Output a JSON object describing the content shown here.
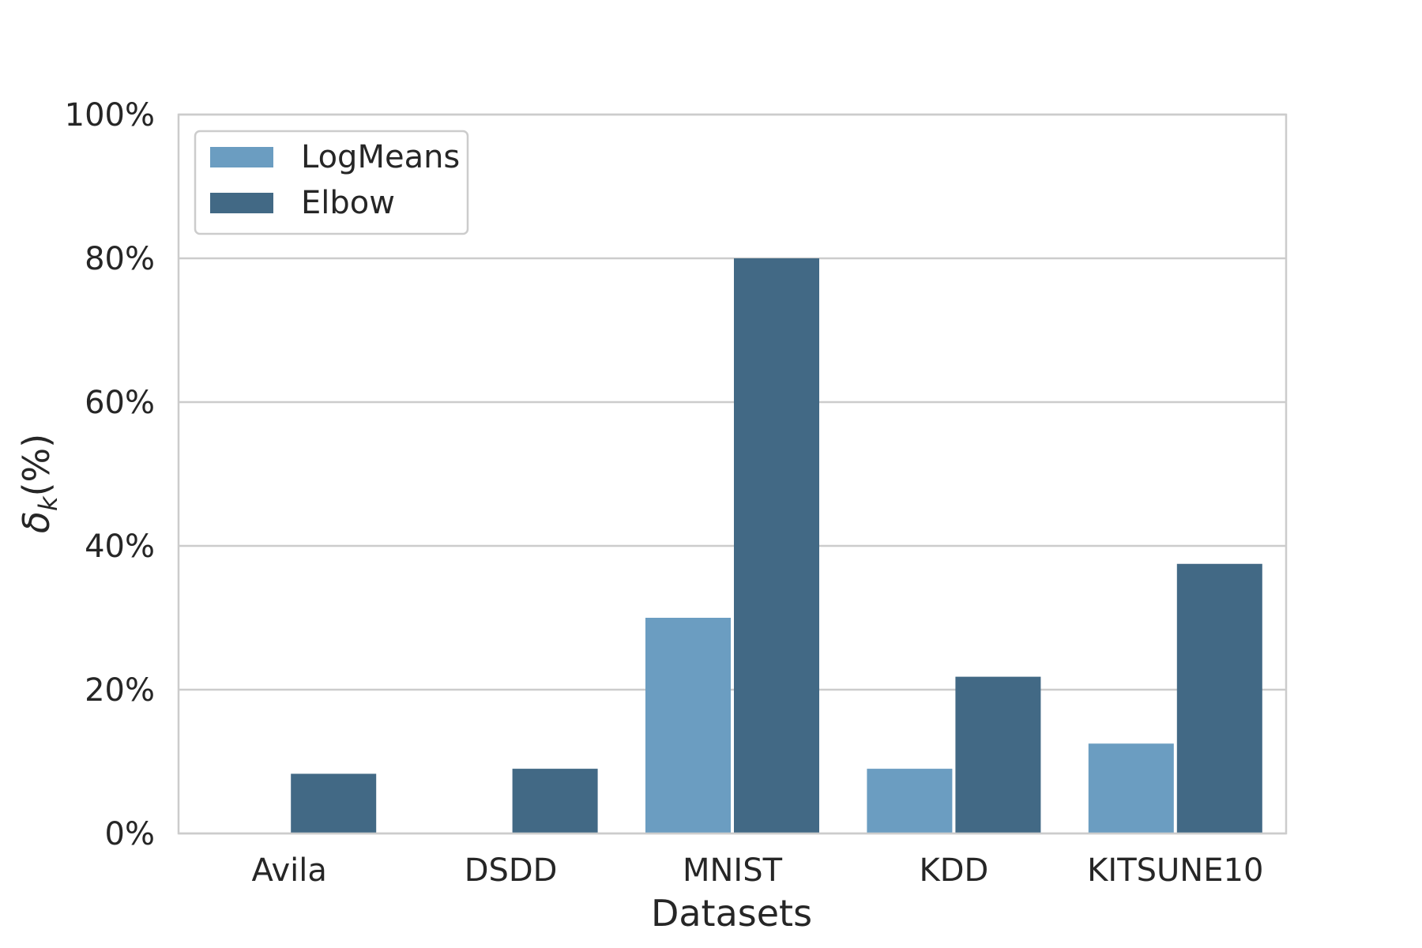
{
  "chart_data": {
    "type": "bar",
    "categories": [
      "Avila",
      "DSDD",
      "MNIST",
      "KDD",
      "KITSUNE10"
    ],
    "series": [
      {
        "name": "LogMeans",
        "values": [
          0,
          0,
          30,
          9,
          12.5
        ],
        "color": "#6b9dc1"
      },
      {
        "name": "Elbow",
        "values": [
          8.3,
          9,
          80,
          21.8,
          37.5
        ],
        "color": "#426985"
      }
    ],
    "title": "",
    "xlabel": "Datasets",
    "ylabel_main": "δ",
    "ylabel_sub": "k",
    "ylabel_suffix": "(%)",
    "ylim": [
      0,
      100
    ],
    "yticks": [
      0,
      20,
      40,
      60,
      80,
      100
    ],
    "ytick_labels": [
      "0%",
      "20%",
      "40%",
      "60%",
      "80%",
      "100%"
    ],
    "grid": true,
    "legend_position": "top-left"
  }
}
